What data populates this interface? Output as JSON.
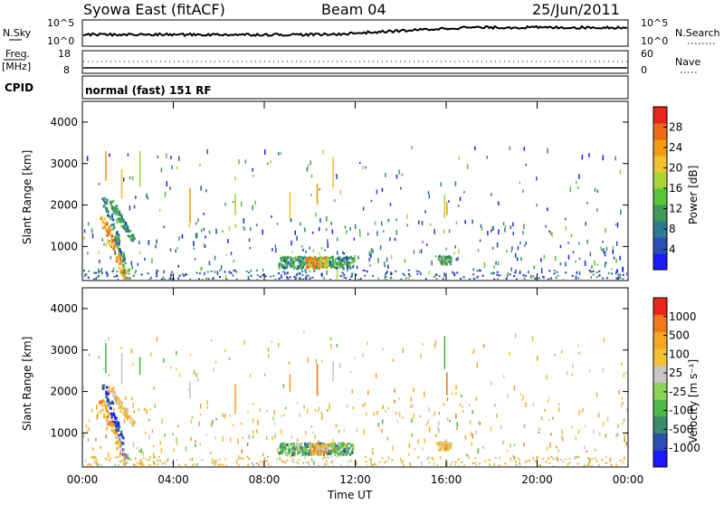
{
  "header": {
    "title": "Syowa East (fitACF)",
    "beam": "Beam 04",
    "date": "25/Jun/2011"
  },
  "strip": {
    "nsky_label": "N.Sky",
    "nsky_ticks": [
      "10^5",
      "10^0"
    ],
    "nsearch_label": "N.Search",
    "nsearch_ticks": [
      "10^5",
      "10^0"
    ],
    "freq_label": "Freq.",
    "freq_unit": "[MHz]",
    "freq_ticks": [
      "18",
      "8"
    ],
    "nave_label": "Nave",
    "nave_ticks": [
      "60",
      "0"
    ],
    "cpid_label": "CPID",
    "cpid_value": "normal (fast) 151 RF"
  },
  "colors": {
    "power": [
      "#1a1aff",
      "#2b4fb5",
      "#2f7a8f",
      "#3d9a5c",
      "#57c43a",
      "#a8d63a",
      "#f1c232",
      "#f39c12",
      "#ee6a1a",
      "#e8261c"
    ],
    "velocity": [
      "#1a1aff",
      "#2b4fb5",
      "#3b8a6e",
      "#4fb84a",
      "#8fd45a",
      "#c8c8c8",
      "#f1c232",
      "#f5a623",
      "#ef7a1a",
      "#e8261c"
    ]
  },
  "chart_data": [
    {
      "type": "heatmap",
      "parameter": "power",
      "ylabel": "Slant Range [km]",
      "yticks": [
        "4000",
        "3000",
        "2000",
        "1000"
      ],
      "ylim": [
        180,
        4500
      ],
      "xlim": [
        0,
        24
      ],
      "colorbar_label": "Power [dB]",
      "colorbar_ticks": [
        "28",
        "24",
        "20",
        "16",
        "12",
        "8",
        "4"
      ],
      "colorbar_range": [
        0,
        32
      ],
      "features": [
        {
          "kind": "band",
          "x": [
            8.6,
            11.9
          ],
          "y": [
            500,
            780
          ],
          "level": 0.35
        },
        {
          "kind": "band",
          "x": [
            9.8,
            10.8
          ],
          "y": [
            520,
            760
          ],
          "level": 0.72
        },
        {
          "kind": "band",
          "x": [
            15.6,
            16.2
          ],
          "y": [
            600,
            800
          ],
          "level": 0.4
        },
        {
          "kind": "streak",
          "x": [
            0.9,
            2.0
          ],
          "y": [
            2200,
            300
          ],
          "level": 0.3
        },
        {
          "kind": "streak",
          "x": [
            0.8,
            1.9
          ],
          "y": [
            1800,
            200
          ],
          "level": 0.75
        },
        {
          "kind": "streak",
          "x": [
            1.2,
            2.2
          ],
          "y": [
            2100,
            1200
          ],
          "level": 0.35
        }
      ]
    },
    {
      "type": "heatmap",
      "parameter": "velocity",
      "ylabel": "Slant Range [km]",
      "yticks": [
        "4000",
        "3000",
        "2000",
        "1000"
      ],
      "ylim": [
        180,
        4500
      ],
      "xlim": [
        0,
        24
      ],
      "xticks": [
        "00:00",
        "04:00",
        "08:00",
        "12:00",
        "16:00",
        "20:00",
        "00:00"
      ],
      "xlabel": "Time UT",
      "colorbar_label": "Velocity [m s⁻¹]",
      "colorbar_ticks": [
        "1000",
        "500",
        "100",
        "25",
        "-25",
        "-100",
        "-500",
        "-1000"
      ],
      "features": [
        {
          "kind": "band",
          "x": [
            8.6,
            11.9
          ],
          "y": [
            500,
            780
          ],
          "level": 0.35
        },
        {
          "kind": "band",
          "x": [
            10.0,
            10.8
          ],
          "y": [
            540,
            760
          ],
          "level": 0.7
        },
        {
          "kind": "band",
          "x": [
            15.6,
            16.2
          ],
          "y": [
            600,
            800
          ],
          "level": 0.7
        },
        {
          "kind": "streak",
          "x": [
            0.9,
            2.0
          ],
          "y": [
            2200,
            300
          ],
          "level": 0.15
        },
        {
          "kind": "streak",
          "x": [
            0.8,
            1.9
          ],
          "y": [
            1800,
            200
          ],
          "level": 0.7
        },
        {
          "kind": "streak",
          "x": [
            1.2,
            2.2
          ],
          "y": [
            2100,
            1200
          ],
          "level": 0.65
        }
      ]
    }
  ]
}
